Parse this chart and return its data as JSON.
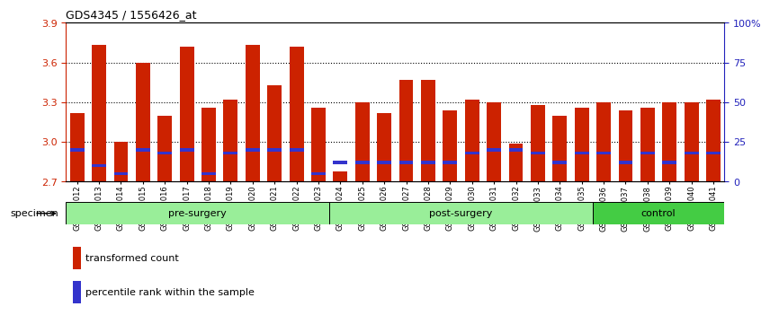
{
  "title": "GDS4345 / 1556426_at",
  "categories": [
    "GSM842012",
    "GSM842013",
    "GSM842014",
    "GSM842015",
    "GSM842016",
    "GSM842017",
    "GSM842018",
    "GSM842019",
    "GSM842020",
    "GSM842021",
    "GSM842022",
    "GSM842023",
    "GSM842024",
    "GSM842025",
    "GSM842026",
    "GSM842027",
    "GSM842028",
    "GSM842029",
    "GSM842030",
    "GSM842031",
    "GSM842032",
    "GSM842033",
    "GSM842034",
    "GSM842035",
    "GSM842036",
    "GSM842037",
    "GSM842038",
    "GSM842039",
    "GSM842040",
    "GSM842041"
  ],
  "red_values": [
    3.22,
    3.73,
    3.0,
    3.6,
    3.2,
    3.72,
    3.26,
    3.32,
    3.73,
    3.43,
    3.72,
    3.26,
    2.78,
    3.3,
    3.22,
    3.47,
    3.47,
    3.24,
    3.32,
    3.3,
    2.99,
    3.28,
    3.2,
    3.26,
    3.3,
    3.24,
    3.26,
    3.3,
    3.3,
    3.32
  ],
  "blue_percentiles": [
    20,
    10,
    5,
    20,
    18,
    20,
    5,
    18,
    20,
    20,
    20,
    5,
    12,
    12,
    12,
    12,
    12,
    12,
    18,
    20,
    20,
    18,
    12,
    18,
    18,
    12,
    18,
    12,
    18,
    18
  ],
  "groups": [
    {
      "label": "pre-surgery",
      "start": 0,
      "end": 12
    },
    {
      "label": "post-surgery",
      "start": 12,
      "end": 24
    },
    {
      "label": "control",
      "start": 24,
      "end": 30
    }
  ],
  "y_min": 2.7,
  "y_max": 3.9,
  "y_ticks": [
    2.7,
    3.0,
    3.3,
    3.6,
    3.9
  ],
  "right_tick_labels": [
    "0",
    "25",
    "50",
    "75",
    "100%"
  ],
  "bar_color_red": "#CC2200",
  "bar_color_blue": "#3333CC",
  "right_axis_color": "#2222BB",
  "group_color_light": "#99EE99",
  "group_color_dark": "#44CC44"
}
